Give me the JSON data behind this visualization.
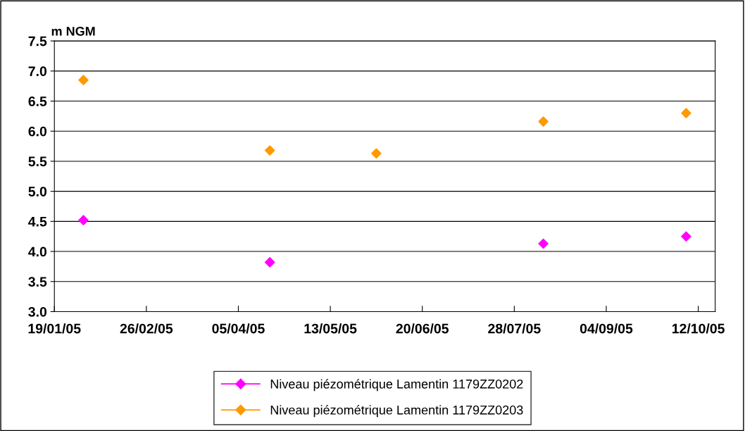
{
  "chart_data": {
    "type": "scatter",
    "ylabel": "m NGM",
    "x": [
      "2005-01-31",
      "2005-04-18",
      "2005-06-01",
      "2005-08-09",
      "2005-10-07"
    ],
    "series": [
      {
        "name": "Niveau piézométrique Lamentin 1179ZZ0202",
        "color": "#ff00ff",
        "values": [
          4.52,
          3.82,
          null,
          4.13,
          4.25
        ]
      },
      {
        "name": "Niveau piézométrique Lamentin 1179ZZ0203",
        "color": "#ff9900",
        "values": [
          6.85,
          5.68,
          5.63,
          6.16,
          6.3
        ]
      }
    ],
    "xlim": [
      "2005-01-19",
      "2005-10-19"
    ],
    "xticks": [
      {
        "value": "2005-01-19",
        "label": "19/01/05"
      },
      {
        "value": "2005-02-26",
        "label": "26/02/05"
      },
      {
        "value": "2005-04-05",
        "label": "05/04/05"
      },
      {
        "value": "2005-05-13",
        "label": "13/05/05"
      },
      {
        "value": "2005-06-20",
        "label": "20/06/05"
      },
      {
        "value": "2005-07-28",
        "label": "28/07/05"
      },
      {
        "value": "2005-09-04",
        "label": "04/09/05"
      },
      {
        "value": "2005-10-12",
        "label": "12/10/05"
      }
    ],
    "ylim": [
      3.0,
      7.5
    ],
    "yticks": [
      {
        "value": 3.0,
        "label": "3.0"
      },
      {
        "value": 3.5,
        "label": "3.5"
      },
      {
        "value": 4.0,
        "label": "4.0"
      },
      {
        "value": 4.5,
        "label": "4.5"
      },
      {
        "value": 5.0,
        "label": "5.0"
      },
      {
        "value": 5.5,
        "label": "5.5"
      },
      {
        "value": 6.0,
        "label": "6.0"
      },
      {
        "value": 6.5,
        "label": "6.5"
      },
      {
        "value": 7.0,
        "label": "7.0"
      },
      {
        "value": 7.5,
        "label": "7.5"
      }
    ],
    "grid": "y",
    "legend": "bottom",
    "marker": "diamond"
  }
}
